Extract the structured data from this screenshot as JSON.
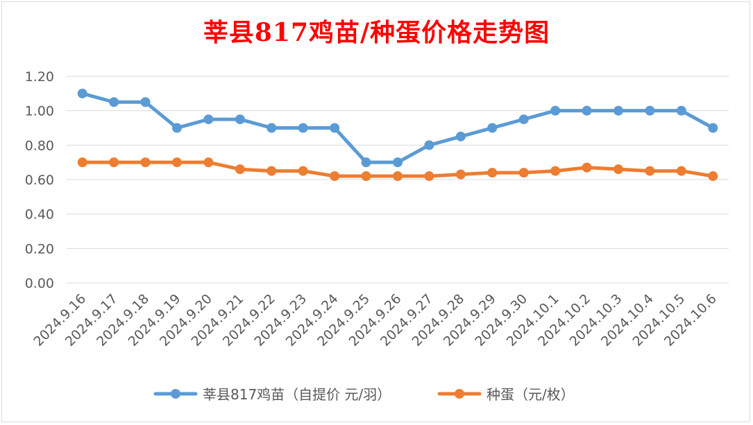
{
  "chart_data": {
    "type": "line",
    "title": "莘县817鸡苗/种蛋价格走势图",
    "categories": [
      "2024.9.16",
      "2024.9.17",
      "2024.9.18",
      "2024.9.19",
      "2024.9.20",
      "2024.9.21",
      "2024.9.22",
      "2024.9.23",
      "2024.9.24",
      "2024.9.25",
      "2024.9.26",
      "2024.9.27",
      "2024.9.28",
      "2024.9.29",
      "2024.9.30",
      "2024.10.1",
      "2024.10.2",
      "2024.10.3",
      "2024.10.4",
      "2024.10.5",
      "2024.10.6"
    ],
    "series": [
      {
        "name": "莘县817鸡苗（自提价 元/羽）",
        "color": "#5b9bd5",
        "values": [
          1.1,
          1.05,
          1.05,
          0.9,
          0.95,
          0.95,
          0.9,
          0.9,
          0.9,
          0.7,
          0.7,
          0.8,
          0.85,
          0.9,
          0.95,
          1.0,
          1.0,
          1.0,
          1.0,
          1.0,
          0.9
        ]
      },
      {
        "name": "种蛋（元/枚）",
        "color": "#ed7d31",
        "values": [
          0.7,
          0.7,
          0.7,
          0.7,
          0.7,
          0.66,
          0.65,
          0.65,
          0.62,
          0.62,
          0.62,
          0.62,
          0.63,
          0.64,
          0.64,
          0.65,
          0.67,
          0.66,
          0.65,
          0.65,
          0.62
        ]
      }
    ],
    "yticks": [
      "0.00",
      "0.20",
      "0.40",
      "0.60",
      "0.80",
      "1.00",
      "1.20"
    ],
    "ylim": [
      0,
      1.2
    ],
    "grid": true,
    "legend_position": "bottom",
    "title_color": "#ff0000"
  }
}
